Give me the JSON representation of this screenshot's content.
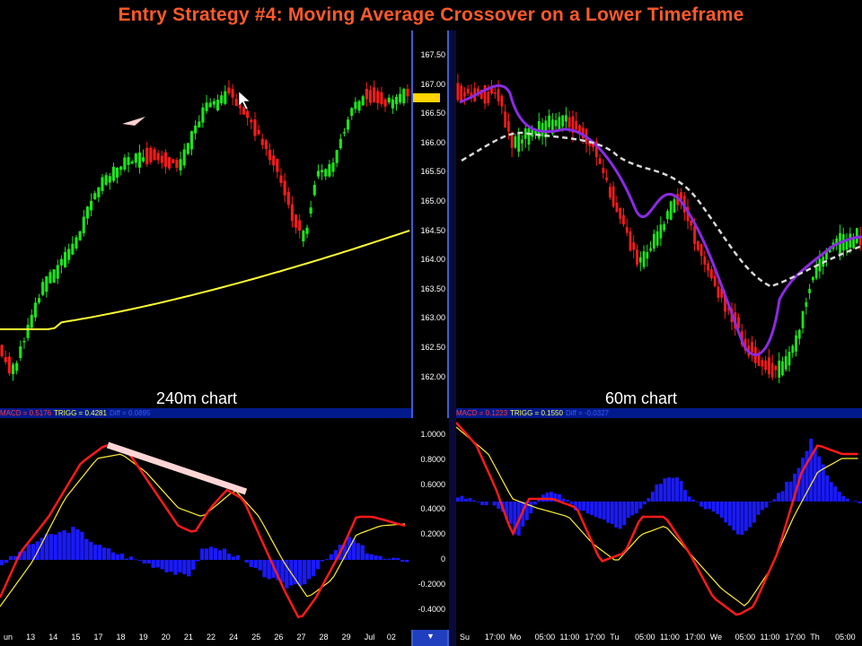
{
  "title": "Entry Strategy #4: Moving Average Crossover on a Lower Timeframe",
  "left": {
    "label": "240m chart",
    "price_ticks": [
      "167.50",
      "167.00",
      "166.50",
      "166.00",
      "165.50",
      "165.00",
      "164.50",
      "164.00",
      "163.50",
      "163.00",
      "162.50",
      "162.00"
    ],
    "macd_header": {
      "macd": "MACD = 0.5176",
      "trigg": "TRIGG = 0.4281",
      "diff": "Diff = 0.0895"
    },
    "macd_ticks": [
      "1.0000",
      "0.8000",
      "0.6000",
      "0.4000",
      "0.2000",
      "0",
      "-0.2000",
      "-0.4000"
    ],
    "dates": [
      "un",
      "13",
      "14",
      "15",
      "17",
      "18",
      "19",
      "20",
      "21",
      "22",
      "24",
      "25",
      "26",
      "27",
      "28",
      "29",
      "Jul",
      "02"
    ]
  },
  "right": {
    "label": "60m chart",
    "macd_header": {
      "macd": "MACD = 0.1223",
      "trigg": "TRIGG = 0.1550",
      "diff": "Diff = -0.0327"
    },
    "dates": [
      "Su",
      "17:00",
      "Mo",
      "05:00",
      "11:00",
      "17:00",
      "Tu",
      "05:00",
      "11:00",
      "17:00",
      "We",
      "05:00",
      "11:00",
      "17:00",
      "Th",
      "05:00"
    ]
  },
  "colors": {
    "title": "#ff5a2a",
    "up": "#19e619",
    "down": "#ff1a1a",
    "ma_yellow": "#ffff33",
    "ma_purple": "#8a2be2",
    "ma_dashed": "#d8d8d8",
    "macd_red": "#ff1a1a",
    "trigg_yellow": "#ffee33",
    "histogram": "#1a1aff",
    "header_bar": "#001a8c",
    "trendline": "#ffd5d5"
  }
}
